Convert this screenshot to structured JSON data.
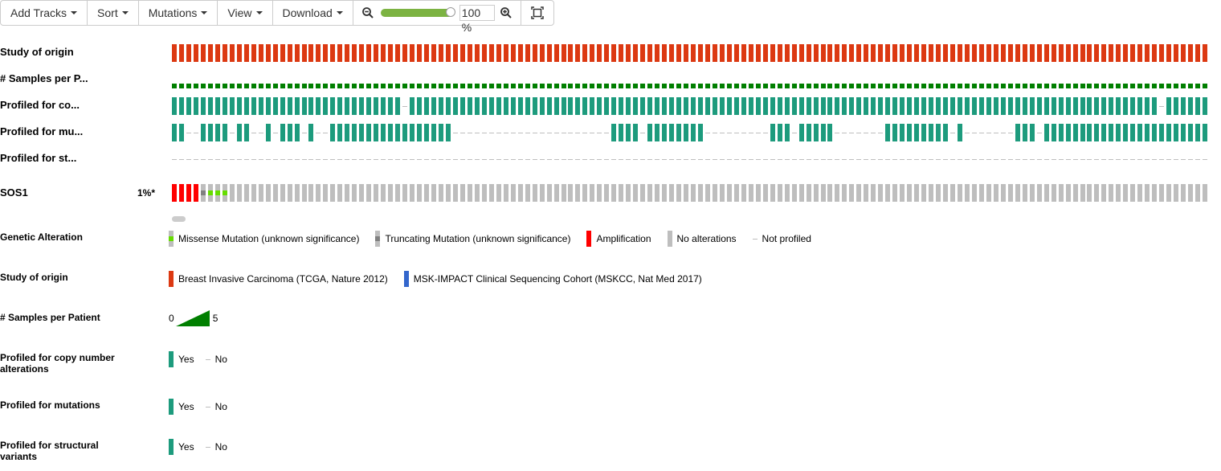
{
  "toolbar": {
    "add_tracks": "Add Tracks",
    "sort": "Sort",
    "mutations": "Mutations",
    "view": "View",
    "download": "Download",
    "zoom_value": "100",
    "zoom_unit": "%",
    "zoom_level": 1.0
  },
  "tracks": {
    "study_of_origin": "Study of origin",
    "samples_per_patient": "# Samples per P...",
    "profiled_cna": "Profiled for co...",
    "profiled_mut": "Profiled for mu...",
    "profiled_sv": "Profiled for st...",
    "gene": "SOS1",
    "gene_pct": "1%*"
  },
  "colors": {
    "study_brca": "#dc3912",
    "study_msk": "#3366cc",
    "samples": "#007f00",
    "profiled": "#1d9b7d",
    "amp": "#ff0000",
    "missense": "#66dd00",
    "truncating": "#808080",
    "no_alt": "#bebebe"
  },
  "legends": {
    "genetic_alteration": {
      "title": "Genetic Alteration",
      "items": [
        "Missense Mutation (unknown significance)",
        "Truncating Mutation (unknown significance)",
        "Amplification",
        "No alterations",
        "Not profiled"
      ]
    },
    "study": {
      "title": "Study of origin",
      "items": [
        "Breast Invasive Carcinoma (TCGA, Nature 2012)",
        "MSK-IMPACT Clinical Sequencing Cohort (MSKCC, Nat Med 2017)"
      ]
    },
    "samples": {
      "title": "# Samples per Patient",
      "min": "0",
      "max": "5"
    },
    "profiled_cna": {
      "title": "Profiled for copy number alterations",
      "yes": "Yes",
      "no": "No"
    },
    "profiled_mut": {
      "title": "Profiled for mutations",
      "yes": "Yes",
      "no": "No"
    },
    "profiled_sv": {
      "title": "Profiled for structural variants",
      "yes": "Yes",
      "no": "No"
    }
  }
}
